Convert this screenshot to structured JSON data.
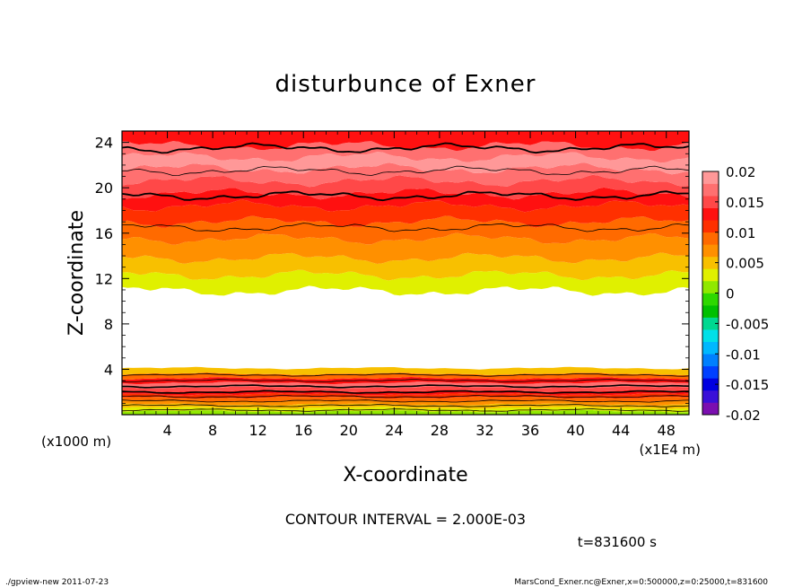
{
  "chart_data": {
    "type": "heatmap",
    "title": "disturbunce of Exner",
    "xlabel": "X-coordinate",
    "ylabel": "Z-coordinate",
    "x_unit": "(x1E4 m)",
    "y_unit": "(x1000 m)",
    "xlim": [
      0,
      50
    ],
    "ylim": [
      0,
      25
    ],
    "x_ticks": [
      4,
      8,
      12,
      16,
      20,
      24,
      28,
      32,
      36,
      40,
      44,
      48
    ],
    "x_tick_labels": [
      "4",
      "8",
      "12",
      "16",
      "20",
      "24",
      "28",
      "32",
      "36",
      "40",
      "44",
      "48"
    ],
    "y_ticks": [
      4,
      8,
      12,
      16,
      20,
      24
    ],
    "y_tick_labels": [
      "4",
      "8",
      "12",
      "16",
      "20",
      "24"
    ],
    "colorbar": {
      "range": [
        -0.02,
        0.02
      ],
      "ticks": [
        0.02,
        0.015,
        0.01,
        0.005,
        0,
        -0.005,
        -0.01,
        -0.015,
        -0.02
      ],
      "tick_labels": [
        "0.02",
        "0.015",
        "0.01",
        "0.005",
        "0",
        "-0.005",
        "-0.01",
        "-0.015",
        "-0.02"
      ],
      "interval": 0.002,
      "colors": [
        "#7b0fb0",
        "#3a10d8",
        "#0000e0",
        "#0040ff",
        "#0080ff",
        "#00b8ff",
        "#00e0e8",
        "#00d890",
        "#00c000",
        "#2ed800",
        "#90e800",
        "#e0f000",
        "#f8c000",
        "#ff9000",
        "#ff6a00",
        "#ff3000",
        "#ff1010",
        "#ff4848",
        "#ff7070",
        "#ff9898"
      ]
    },
    "upper_bands": [
      {
        "from": 10.9,
        "to": 12.3,
        "value": 0.002
      },
      {
        "from": 12.3,
        "to": 13.8,
        "value": 0.004
      },
      {
        "from": 13.8,
        "to": 15.5,
        "value": 0.006
      },
      {
        "from": 15.5,
        "to": 17.0,
        "value": 0.008
      },
      {
        "from": 17.0,
        "to": 18.4,
        "value": 0.01
      },
      {
        "from": 18.4,
        "to": 19.5,
        "value": 0.012
      },
      {
        "from": 19.5,
        "to": 20.6,
        "value": 0.014
      },
      {
        "from": 20.6,
        "to": 21.7,
        "value": 0.016
      },
      {
        "from": 21.7,
        "to": 22.7,
        "value": 0.018
      },
      {
        "from": 22.7,
        "to": 23.7,
        "value": 0.016
      },
      {
        "from": 23.7,
        "to": 25.0,
        "value": 0.012
      }
    ],
    "lower_bands": [
      {
        "from": 0.0,
        "to": 0.3,
        "value": 0.0
      },
      {
        "from": 0.3,
        "to": 0.6,
        "value": 0.002
      },
      {
        "from": 0.6,
        "to": 0.9,
        "value": 0.004
      },
      {
        "from": 0.9,
        "to": 1.2,
        "value": 0.006
      },
      {
        "from": 1.2,
        "to": 1.5,
        "value": 0.008
      },
      {
        "from": 1.5,
        "to": 1.8,
        "value": 0.01
      },
      {
        "from": 1.8,
        "to": 2.1,
        "value": 0.012
      },
      {
        "from": 2.1,
        "to": 2.4,
        "value": 0.014
      },
      {
        "from": 2.4,
        "to": 2.8,
        "value": 0.016
      },
      {
        "from": 2.8,
        "to": 3.2,
        "value": 0.012
      },
      {
        "from": 3.2,
        "to": 3.6,
        "value": 0.008
      },
      {
        "from": 3.6,
        "to": 4.1,
        "value": 0.004
      }
    ],
    "upper_contours": [
      {
        "z": 16.5,
        "thick": false
      },
      {
        "z": 19.3,
        "thick": true
      },
      {
        "z": 21.5,
        "thick": false
      },
      {
        "z": 23.5,
        "thick": true
      }
    ],
    "lower_contours": [
      {
        "z": 0.4,
        "thick": false
      },
      {
        "z": 0.8,
        "thick": false
      },
      {
        "z": 1.2,
        "thick": false
      },
      {
        "z": 1.6,
        "thick": false
      },
      {
        "z": 2.0,
        "thick": true
      },
      {
        "z": 2.5,
        "thick": true
      },
      {
        "z": 3.0,
        "thick": false
      },
      {
        "z": 3.5,
        "thick": false
      }
    ],
    "contour_interval_label": "CONTOUR INTERVAL = 2.000E-03",
    "time_label": "t=831600 s"
  },
  "footer": {
    "left": "./gpview-new   2011-07-23",
    "right": "MarsCond_Exner.nc@Exner,x=0:500000,z=0:25000,t=831600"
  }
}
